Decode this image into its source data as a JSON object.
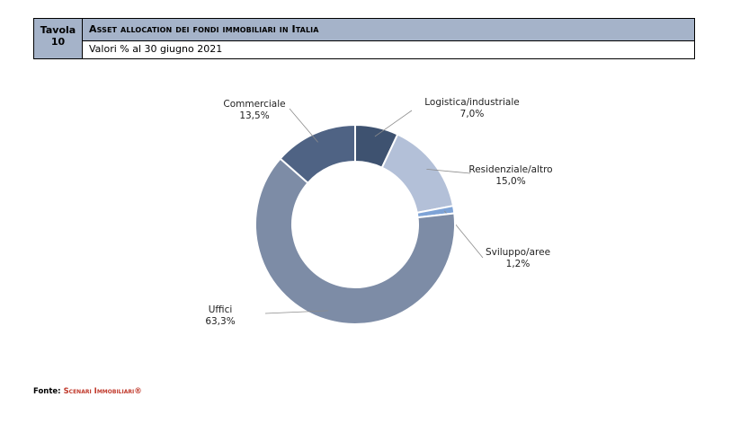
{
  "header": {
    "tavola_label": "Tavola",
    "tavola_number": "10",
    "title": "Asset allocation dei fondi immobiliari in Italia",
    "subtitle": "Valori % al 30 giugno 2021"
  },
  "chart_data": {
    "type": "pie",
    "donut": true,
    "series": [
      {
        "name": "Logistica/industriale",
        "value": 7.0,
        "label": "7,0%",
        "color": "#3e5270"
      },
      {
        "name": "Residenziale/altro",
        "value": 15.0,
        "label": "15,0%",
        "color": "#b3c0d8"
      },
      {
        "name": "Sviluppo/aree",
        "value": 1.2,
        "label": "1,2%",
        "color": "#7ea3d6"
      },
      {
        "name": "Uffici",
        "value": 63.3,
        "label": "63,3%",
        "color": "#7d8ca6"
      },
      {
        "name": "Commerciale",
        "value": 13.5,
        "label": "13,5%",
        "color": "#4f6384"
      }
    ]
  },
  "source": {
    "prefix": "Fonte:",
    "name": "Scenari Immobiliari®"
  }
}
